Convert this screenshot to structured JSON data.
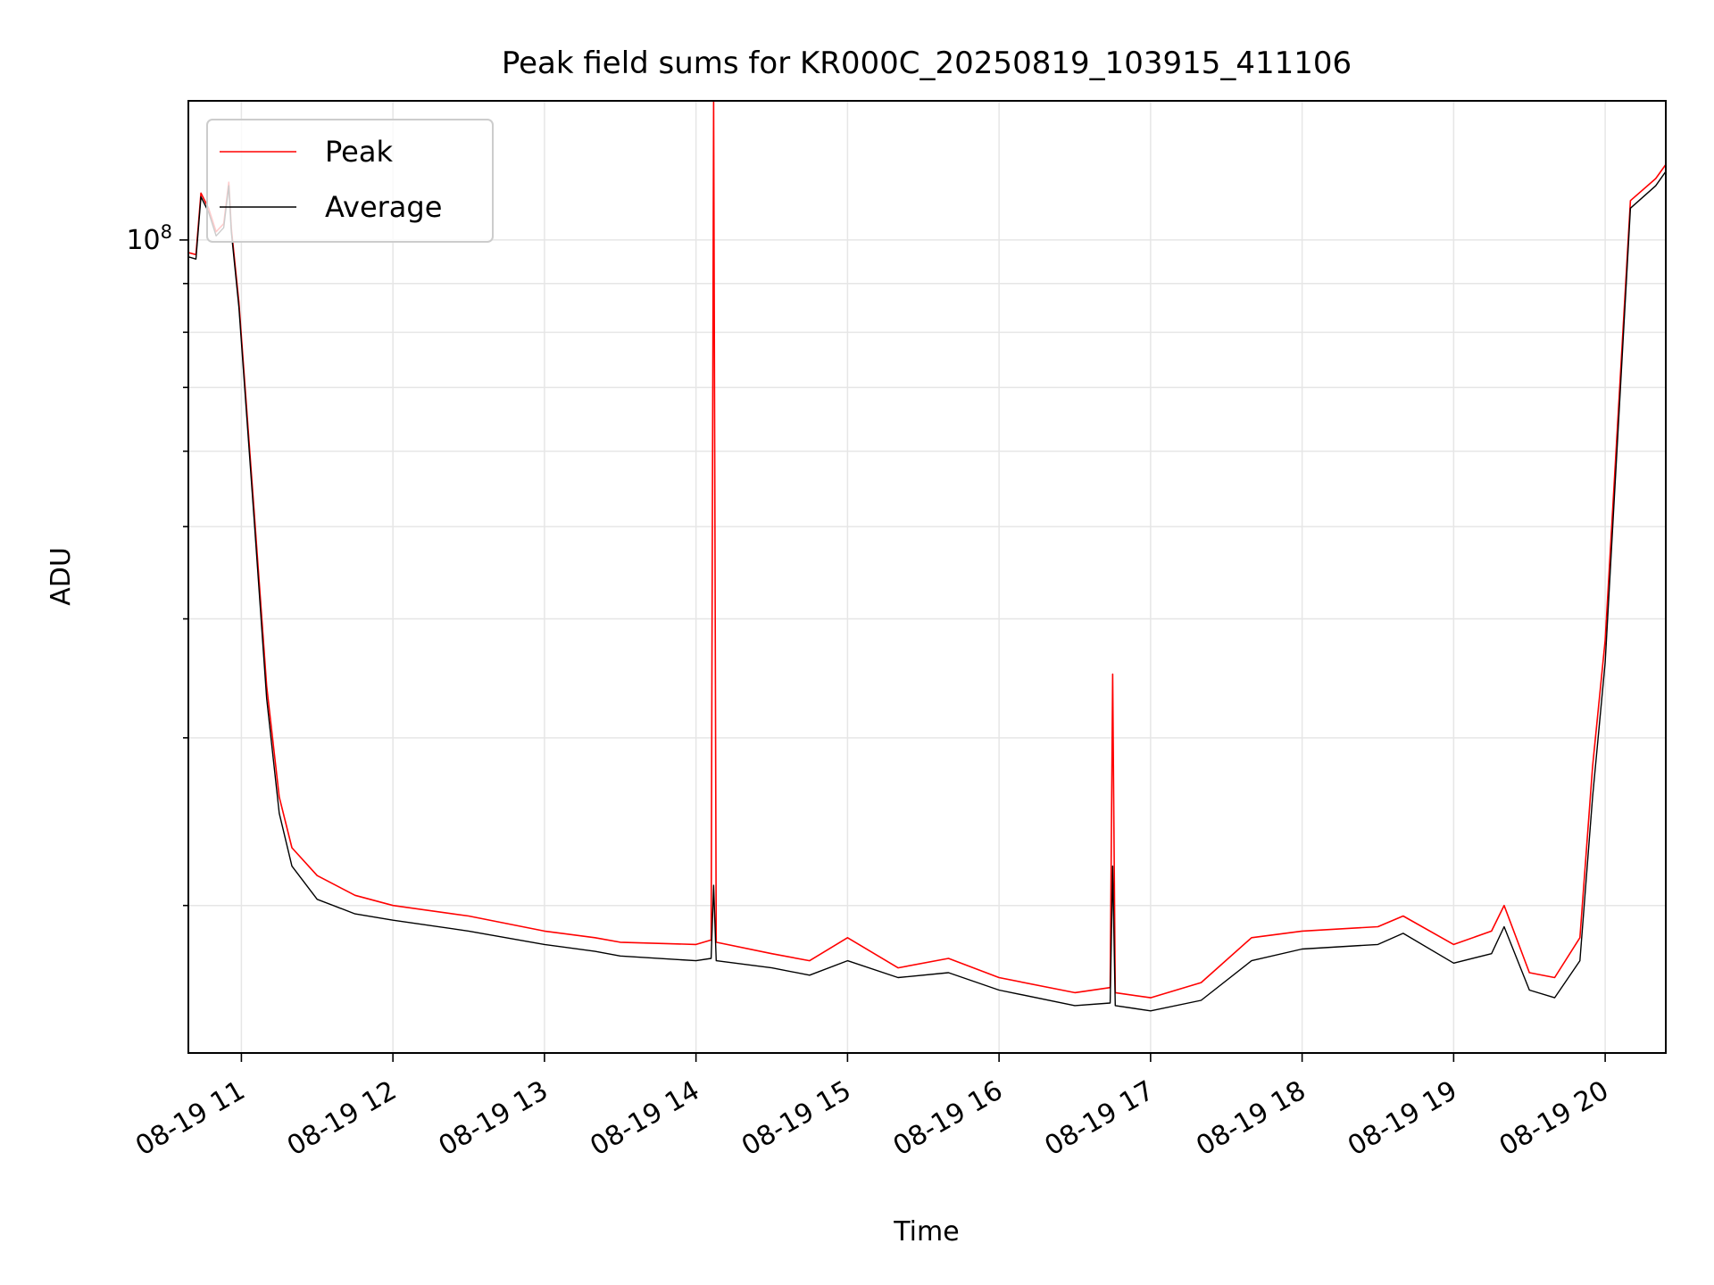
{
  "chart_data": {
    "type": "line",
    "title": "Peak field sums for KR000C_20250819_103915_411106",
    "xlabel": "Time",
    "ylabel": "ADU",
    "x_scale": "time",
    "y_scale": "log",
    "xlim": [
      "2025-08-19 10:39",
      "2025-08-19 20:24"
    ],
    "ylim": [
      14000000,
      140000000
    ],
    "x_ticks": [
      "08-19 11",
      "08-19 12",
      "08-19 13",
      "08-19 14",
      "08-19 15",
      "08-19 16",
      "08-19 17",
      "08-19 18",
      "08-19 19",
      "08-19 20"
    ],
    "y_major_tick_label": "10^8",
    "grid": true,
    "legend": {
      "position": "top-left"
    },
    "colors": {
      "Peak": "#ff0000",
      "Average": "#000000"
    },
    "series": [
      {
        "name": "Peak",
        "x": [
          "10:39",
          "10:42",
          "10:44",
          "10:47",
          "10:50",
          "10:53",
          "10:55",
          "10:56",
          "10:59",
          "11:05",
          "11:10",
          "11:15",
          "11:20",
          "11:30",
          "11:45",
          "12:00",
          "12:30",
          "13:00",
          "13:20",
          "13:30",
          "14:00",
          "14:06",
          "14:07",
          "14:08",
          "14:30",
          "14:45",
          "15:00",
          "15:20",
          "15:40",
          "16:00",
          "16:30",
          "16:44",
          "16:45",
          "16:46",
          "17:00",
          "17:20",
          "17:40",
          "18:00",
          "18:30",
          "18:40",
          "19:00",
          "19:15",
          "19:20",
          "19:30",
          "19:40",
          "19:50",
          "19:55",
          "20:00",
          "20:10",
          "20:20",
          "20:24"
        ],
        "y": [
          97000000,
          96500000,
          112000000,
          108000000,
          102000000,
          104000000,
          115000000,
          103000000,
          86000000,
          52000000,
          34000000,
          26000000,
          23000000,
          21500000,
          20500000,
          20000000,
          19500000,
          18800000,
          18500000,
          18300000,
          18200000,
          18400000,
          140000000,
          18300000,
          17800000,
          17500000,
          18500000,
          17200000,
          17600000,
          16800000,
          16200000,
          16400000,
          35000000,
          16200000,
          16000000,
          16600000,
          18500000,
          18800000,
          19000000,
          19500000,
          18200000,
          18800000,
          20000000,
          17000000,
          16800000,
          18500000,
          28000000,
          38000000,
          110000000,
          116000000,
          120000000
        ]
      },
      {
        "name": "Average",
        "x": [
          "10:39",
          "10:42",
          "10:44",
          "10:47",
          "10:50",
          "10:53",
          "10:55",
          "10:56",
          "10:59",
          "11:05",
          "11:10",
          "11:15",
          "11:20",
          "11:30",
          "11:45",
          "12:00",
          "12:30",
          "13:00",
          "13:20",
          "13:30",
          "14:00",
          "14:06",
          "14:07",
          "14:08",
          "14:30",
          "14:45",
          "15:00",
          "15:20",
          "15:40",
          "16:00",
          "16:30",
          "16:44",
          "16:45",
          "16:46",
          "17:00",
          "17:20",
          "17:40",
          "18:00",
          "18:30",
          "18:40",
          "19:00",
          "19:15",
          "19:20",
          "19:30",
          "19:40",
          "19:50",
          "19:55",
          "20:00",
          "20:10",
          "20:20",
          "20:24"
        ],
        "y": [
          96000000,
          95500000,
          111000000,
          107000000,
          101000000,
          103000000,
          114000000,
          102000000,
          85000000,
          51000000,
          33000000,
          25000000,
          22000000,
          20300000,
          19600000,
          19300000,
          18800000,
          18200000,
          17900000,
          17700000,
          17500000,
          17600000,
          21000000,
          17500000,
          17200000,
          16900000,
          17500000,
          16800000,
          17000000,
          16300000,
          15700000,
          15800000,
          22000000,
          15700000,
          15500000,
          15900000,
          17500000,
          18000000,
          18200000,
          18700000,
          17400000,
          17800000,
          19000000,
          16300000,
          16000000,
          17500000,
          26000000,
          36000000,
          108000000,
          114000000,
          118000000
        ]
      }
    ]
  }
}
